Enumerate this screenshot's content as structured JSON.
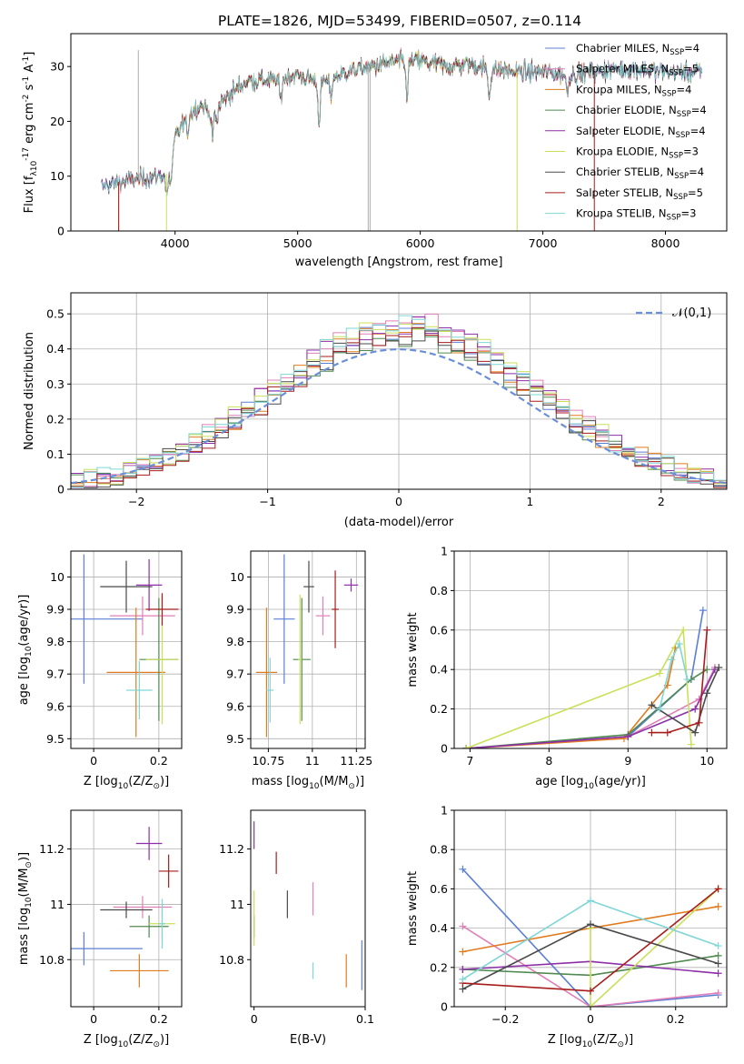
{
  "figure_title": "PLATE=1826, MJD=53499, FIBERID=0507, z=0.114",
  "colors": {
    "Chabrier MILES": "#5b7fd6",
    "Salpeter MILES": "#e07fb8",
    "Kroupa MILES": "#e07b1f",
    "Chabrier ELODIE": "#4f8a4f",
    "Salpeter ELODIE": "#8c2fa8",
    "Kroupa ELODIE": "#c9e05a",
    "Chabrier STELIB": "#4a4a4a",
    "Salpeter STELIB": "#a81c1c",
    "Kroupa STELIB": "#7fd6d6"
  },
  "chart_data": [
    {
      "id": "spectrum",
      "type": "line",
      "xlabel": "wavelength [Angstrom, rest frame]",
      "ylabel": "Flux [f_λ10^{-17} erg cm^{-2} s^{-1} A^{-1}]",
      "xlim": [
        3150,
        8500
      ],
      "ylim": [
        0,
        36
      ],
      "xticks": [
        4000,
        5000,
        6000,
        7000,
        8000
      ],
      "yticks": [
        0,
        10,
        20,
        30
      ],
      "grid": false,
      "legend_position": "right",
      "legend": [
        {
          "name": "Chabrier MILES",
          "nssp": "4"
        },
        {
          "name": "Salpeter MILES",
          "nssp": "5"
        },
        {
          "name": "Kroupa MILES",
          "nssp": "4"
        },
        {
          "name": "Chabrier ELODIE",
          "nssp": "4"
        },
        {
          "name": "Salpeter ELODIE",
          "nssp": "4"
        },
        {
          "name": "Kroupa ELODIE",
          "nssp": "3"
        },
        {
          "name": "Chabrier STELIB",
          "nssp": "4"
        },
        {
          "name": "Salpeter STELIB",
          "nssp": "5"
        },
        {
          "name": "Kroupa STELIB",
          "nssp": "3"
        }
      ],
      "continuum_points": [
        [
          3400,
          8
        ],
        [
          3550,
          9
        ],
        [
          3700,
          9.5
        ],
        [
          3850,
          10
        ],
        [
          3950,
          10.5
        ],
        [
          4000,
          17
        ],
        [
          4100,
          21
        ],
        [
          4200,
          23
        ],
        [
          4300,
          22
        ],
        [
          4400,
          24
        ],
        [
          4500,
          26
        ],
        [
          4600,
          27.5
        ],
        [
          4800,
          27.5
        ],
        [
          5000,
          28.5
        ],
        [
          5200,
          27
        ],
        [
          5400,
          29
        ],
        [
          5600,
          30
        ],
        [
          5800,
          31
        ],
        [
          6000,
          31
        ],
        [
          6200,
          30
        ],
        [
          6400,
          30.5
        ],
        [
          6600,
          29.5
        ],
        [
          6800,
          29
        ],
        [
          7000,
          29
        ],
        [
          7200,
          28.5
        ],
        [
          7400,
          29
        ],
        [
          7600,
          29.5
        ],
        [
          7800,
          29.5
        ],
        [
          8000,
          29
        ],
        [
          8300,
          29
        ]
      ],
      "absorption_lines": [
        [
          3934,
          4
        ],
        [
          3969,
          3.5
        ],
        [
          4102,
          3
        ],
        [
          4304,
          5
        ],
        [
          4340,
          3
        ],
        [
          4861,
          4
        ],
        [
          5175,
          7
        ],
        [
          5270,
          3
        ],
        [
          5892,
          6
        ],
        [
          6563,
          5
        ],
        [
          7200,
          3
        ]
      ]
    },
    {
      "id": "residuals",
      "type": "histogram",
      "xlabel": "(data-model)/error",
      "ylabel": "Normed distribution",
      "xlim": [
        -2.5,
        2.5
      ],
      "ylim": [
        0,
        0.56
      ],
      "xticks": [
        -2,
        -1,
        0,
        1,
        2
      ],
      "yticks": [
        0.0,
        0.1,
        0.2,
        0.3,
        0.4,
        0.5
      ],
      "grid": true,
      "reference_curve": "𝒩(0,1)",
      "legend_position": "top-right",
      "bin_width": 0.1
    },
    {
      "id": "age_vs_Z",
      "type": "scatter",
      "xlabel": "Z [log_10(Z/Z_⊙)]",
      "ylabel": "age  [log_10(age/yr)]",
      "xlim": [
        -0.07,
        0.27
      ],
      "ylim": [
        9.47,
        10.08
      ],
      "xticks": [
        0.0,
        0.2
      ],
      "yticks": [
        9.5,
        9.6,
        9.7,
        9.8,
        9.9,
        10.0
      ],
      "grid": true,
      "points": [
        {
          "model": "Chabrier MILES",
          "x": -0.03,
          "y": 9.87,
          "xerr": 0.18,
          "yerr": 0.2
        },
        {
          "model": "Salpeter MILES",
          "x": 0.15,
          "y": 9.88,
          "xerr": 0.1,
          "yerr": 0.06
        },
        {
          "model": "Kroupa MILES",
          "x": 0.13,
          "y": 9.705,
          "xerr": 0.09,
          "yerr": 0.2
        },
        {
          "model": "Chabrier ELODIE",
          "x": 0.2,
          "y": 9.745,
          "xerr": 0.06,
          "yerr": 0.19
        },
        {
          "model": "Salpeter ELODIE",
          "x": 0.17,
          "y": 9.975,
          "xerr": 0.04,
          "yerr": 0.08
        },
        {
          "model": "Kroupa ELODIE",
          "x": 0.21,
          "y": 9.745,
          "xerr": 0.05,
          "yerr": 0.2
        },
        {
          "model": "Chabrier STELIB",
          "x": 0.1,
          "y": 9.97,
          "xerr": 0.08,
          "yerr": 0.08
        },
        {
          "model": "Salpeter STELIB",
          "x": 0.21,
          "y": 9.9,
          "xerr": 0.05,
          "yerr": 0.05
        },
        {
          "model": "Kroupa STELIB",
          "x": 0.14,
          "y": 9.65,
          "xerr": 0.04,
          "yerr": 0.09
        }
      ]
    },
    {
      "id": "age_vs_mass",
      "type": "scatter",
      "xlabel": "mass [log_10(M/M_⊙)]",
      "ylabel": "",
      "xlim": [
        10.65,
        11.3
      ],
      "ylim": [
        9.47,
        10.08
      ],
      "xticks": [
        10.75,
        11.0,
        11.25
      ],
      "yticks": [
        9.5,
        9.6,
        9.7,
        9.8,
        9.9,
        10.0
      ],
      "grid": true,
      "points": [
        {
          "model": "Chabrier MILES",
          "x": 10.84,
          "y": 9.87,
          "xerr": 0.06,
          "yerr": 0.2
        },
        {
          "model": "Salpeter MILES",
          "x": 11.06,
          "y": 9.88,
          "xerr": 0.04,
          "yerr": 0.06
        },
        {
          "model": "Kroupa MILES",
          "x": 10.74,
          "y": 9.705,
          "xerr": 0.06,
          "yerr": 0.2
        },
        {
          "model": "Chabrier ELODIE",
          "x": 10.94,
          "y": 9.745,
          "xerr": 0.05,
          "yerr": 0.19
        },
        {
          "model": "Salpeter ELODIE",
          "x": 11.22,
          "y": 9.975,
          "xerr": 0.04,
          "yerr": 0.02
        },
        {
          "model": "Kroupa ELODIE",
          "x": 10.93,
          "y": 9.745,
          "xerr": 0.01,
          "yerr": 0.2
        },
        {
          "model": "Chabrier STELIB",
          "x": 10.98,
          "y": 9.97,
          "xerr": 0.03,
          "yerr": 0.08
        },
        {
          "model": "Salpeter STELIB",
          "x": 11.13,
          "y": 9.9,
          "xerr": 0.02,
          "yerr": 0.12
        },
        {
          "model": "Kroupa STELIB",
          "x": 10.76,
          "y": 9.65,
          "xerr": 0.02,
          "yerr": 0.1
        }
      ]
    },
    {
      "id": "mass_weight_vs_age",
      "type": "line",
      "xlabel": "age  [log_10(age/yr)]",
      "ylabel": "mass weight",
      "xlim": [
        6.8,
        10.25
      ],
      "ylim": [
        0,
        1
      ],
      "xticks": [
        7,
        8,
        9,
        10
      ],
      "yticks": [
        0.0,
        0.2,
        0.4,
        0.6,
        0.8,
        1.0
      ],
      "grid": true,
      "series": [
        {
          "model": "Chabrier MILES",
          "x": [
            6.95,
            9.0,
            9.8,
            9.95
          ],
          "y": [
            0.0,
            0.06,
            0.35,
            0.7
          ]
        },
        {
          "model": "Salpeter MILES",
          "x": [
            6.95,
            9.0,
            9.9,
            10.1
          ],
          "y": [
            0.0,
            0.06,
            0.25,
            0.41
          ]
        },
        {
          "model": "Kroupa MILES",
          "x": [
            6.95,
            8.95,
            9.5,
            9.6
          ],
          "y": [
            0.0,
            0.05,
            0.32,
            0.51
          ]
        },
        {
          "model": "Chabrier ELODIE",
          "x": [
            6.95,
            9.0,
            9.8,
            10.0
          ],
          "y": [
            0.0,
            0.07,
            0.35,
            0.4
          ]
        },
        {
          "model": "Salpeter ELODIE",
          "x": [
            6.95,
            9.0,
            9.85,
            10.1
          ],
          "y": [
            0.0,
            0.06,
            0.2,
            0.4
          ]
        },
        {
          "model": "Kroupa ELODIE",
          "x": [
            6.95,
            9.4,
            9.7,
            9.8
          ],
          "y": [
            0.0,
            0.38,
            0.6,
            0.02
          ]
        },
        {
          "model": "Chabrier STELIB",
          "x": [
            9.3,
            9.85,
            10.0,
            10.15
          ],
          "y": [
            0.22,
            0.08,
            0.28,
            0.41
          ]
        },
        {
          "model": "Salpeter STELIB",
          "x": [
            9.3,
            9.5,
            9.9,
            10.0
          ],
          "y": [
            0.08,
            0.08,
            0.13,
            0.6
          ]
        },
        {
          "model": "Kroupa STELIB",
          "x": [
            9.4,
            9.55,
            9.65,
            9.75
          ],
          "y": [
            0.2,
            0.45,
            0.53,
            0.35
          ]
        }
      ]
    },
    {
      "id": "mass_vs_Z",
      "type": "scatter",
      "xlabel": "Z [log_10(Z/Z_⊙)]",
      "ylabel": "mass [log_10(M/M_⊙)]",
      "xlim": [
        -0.07,
        0.27
      ],
      "ylim": [
        10.63,
        11.34
      ],
      "xticks": [
        0.0,
        0.2
      ],
      "yticks": [
        10.8,
        11.0,
        11.2
      ],
      "grid": true,
      "points": [
        {
          "model": "Chabrier MILES",
          "x": -0.03,
          "y": 10.84,
          "xerr": 0.18,
          "yerr": 0.06
        },
        {
          "model": "Salpeter MILES",
          "x": 0.15,
          "y": 10.99,
          "xerr": 0.09,
          "yerr": 0.04
        },
        {
          "model": "Kroupa MILES",
          "x": 0.14,
          "y": 10.76,
          "xerr": 0.09,
          "yerr": 0.06
        },
        {
          "model": "Chabrier ELODIE",
          "x": 0.17,
          "y": 10.92,
          "xerr": 0.06,
          "yerr": 0.04
        },
        {
          "model": "Salpeter ELODIE",
          "x": 0.17,
          "y": 11.22,
          "xerr": 0.04,
          "yerr": 0.06
        },
        {
          "model": "Kroupa ELODIE",
          "x": 0.21,
          "y": 10.93,
          "xerr": 0.04,
          "yerr": 0.06
        },
        {
          "model": "Chabrier STELIB",
          "x": 0.1,
          "y": 10.98,
          "xerr": 0.08,
          "yerr": 0.03
        },
        {
          "model": "Salpeter STELIB",
          "x": 0.23,
          "y": 11.12,
          "xerr": 0.03,
          "yerr": 0.06
        },
        {
          "model": "Kroupa STELIB",
          "x": 0.21,
          "y": 10.93,
          "xerr": 0.01,
          "yerr": 0.09
        }
      ]
    },
    {
      "id": "mass_vs_ebv",
      "type": "scatter",
      "xlabel": "E(B-V)",
      "ylabel": "",
      "xlim": [
        -0.003,
        0.1
      ],
      "ylim": [
        10.63,
        11.34
      ],
      "xticks": [
        0.0,
        0.1
      ],
      "yticks": [
        10.8,
        11.0,
        11.2
      ],
      "grid": false,
      "points": [
        {
          "model": "Chabrier MILES",
          "x": 0.097,
          "y": 10.78,
          "xerr": 0,
          "yerr": 0.09
        },
        {
          "model": "Salpeter MILES",
          "x": 0.053,
          "y": 11.02,
          "xerr": 0,
          "yerr": 0.06
        },
        {
          "model": "Kroupa MILES",
          "x": 0.083,
          "y": 10.76,
          "xerr": 0,
          "yerr": 0.06
        },
        {
          "model": "Chabrier ELODIE",
          "x": 0.0,
          "y": 10.92,
          "xerr": 0,
          "yerr": 0.04
        },
        {
          "model": "Salpeter ELODIE",
          "x": 0.0,
          "y": 11.25,
          "xerr": 0,
          "yerr": 0.05
        },
        {
          "model": "Kroupa ELODIE",
          "x": 0.0,
          "y": 10.95,
          "xerr": 0,
          "yerr": 0.1
        },
        {
          "model": "Chabrier STELIB",
          "x": 0.03,
          "y": 11.0,
          "xerr": 0,
          "yerr": 0.05
        },
        {
          "model": "Salpeter STELIB",
          "x": 0.02,
          "y": 11.15,
          "xerr": 0,
          "yerr": 0.04
        },
        {
          "model": "Kroupa STELIB",
          "x": 0.053,
          "y": 10.76,
          "xerr": 0,
          "yerr": 0.03
        }
      ]
    },
    {
      "id": "mass_weight_vs_Z",
      "type": "line",
      "xlabel": "Z [log_10(Z/Z_⊙)]",
      "ylabel": "mass weight",
      "xlim": [
        -0.32,
        0.32
      ],
      "ylim": [
        0,
        1
      ],
      "xticks": [
        -0.2,
        0.0,
        0.2
      ],
      "yticks": [
        0.0,
        0.2,
        0.4,
        0.6,
        0.8,
        1.0
      ],
      "grid": true,
      "series": [
        {
          "model": "Chabrier MILES",
          "x": [
            -0.3,
            0.0,
            0.3
          ],
          "y": [
            0.7,
            0.0,
            0.06
          ]
        },
        {
          "model": "Salpeter MILES",
          "x": [
            -0.3,
            0.0,
            0.3
          ],
          "y": [
            0.41,
            0.0,
            0.07
          ]
        },
        {
          "model": "Kroupa MILES",
          "x": [
            -0.3,
            0.0,
            0.3
          ],
          "y": [
            0.28,
            0.4,
            0.51
          ]
        },
        {
          "model": "Chabrier ELODIE",
          "x": [
            -0.3,
            0.0,
            0.3
          ],
          "y": [
            0.19,
            0.16,
            0.26
          ]
        },
        {
          "model": "Salpeter ELODIE",
          "x": [
            -0.3,
            0.0,
            0.3
          ],
          "y": [
            0.19,
            0.23,
            0.17
          ]
        },
        {
          "model": "Kroupa ELODIE",
          "x": [
            0.0,
            0.0,
            0.3
          ],
          "y": [
            0.4,
            0.0,
            0.6
          ]
        },
        {
          "model": "Chabrier STELIB",
          "x": [
            -0.3,
            0.0,
            0.3
          ],
          "y": [
            0.09,
            0.42,
            0.22
          ]
        },
        {
          "model": "Salpeter STELIB",
          "x": [
            -0.3,
            0.0,
            0.3
          ],
          "y": [
            0.12,
            0.08,
            0.6
          ]
        },
        {
          "model": "Kroupa STELIB",
          "x": [
            -0.3,
            0.0,
            0.3
          ],
          "y": [
            0.14,
            0.54,
            0.31
          ]
        }
      ]
    }
  ]
}
